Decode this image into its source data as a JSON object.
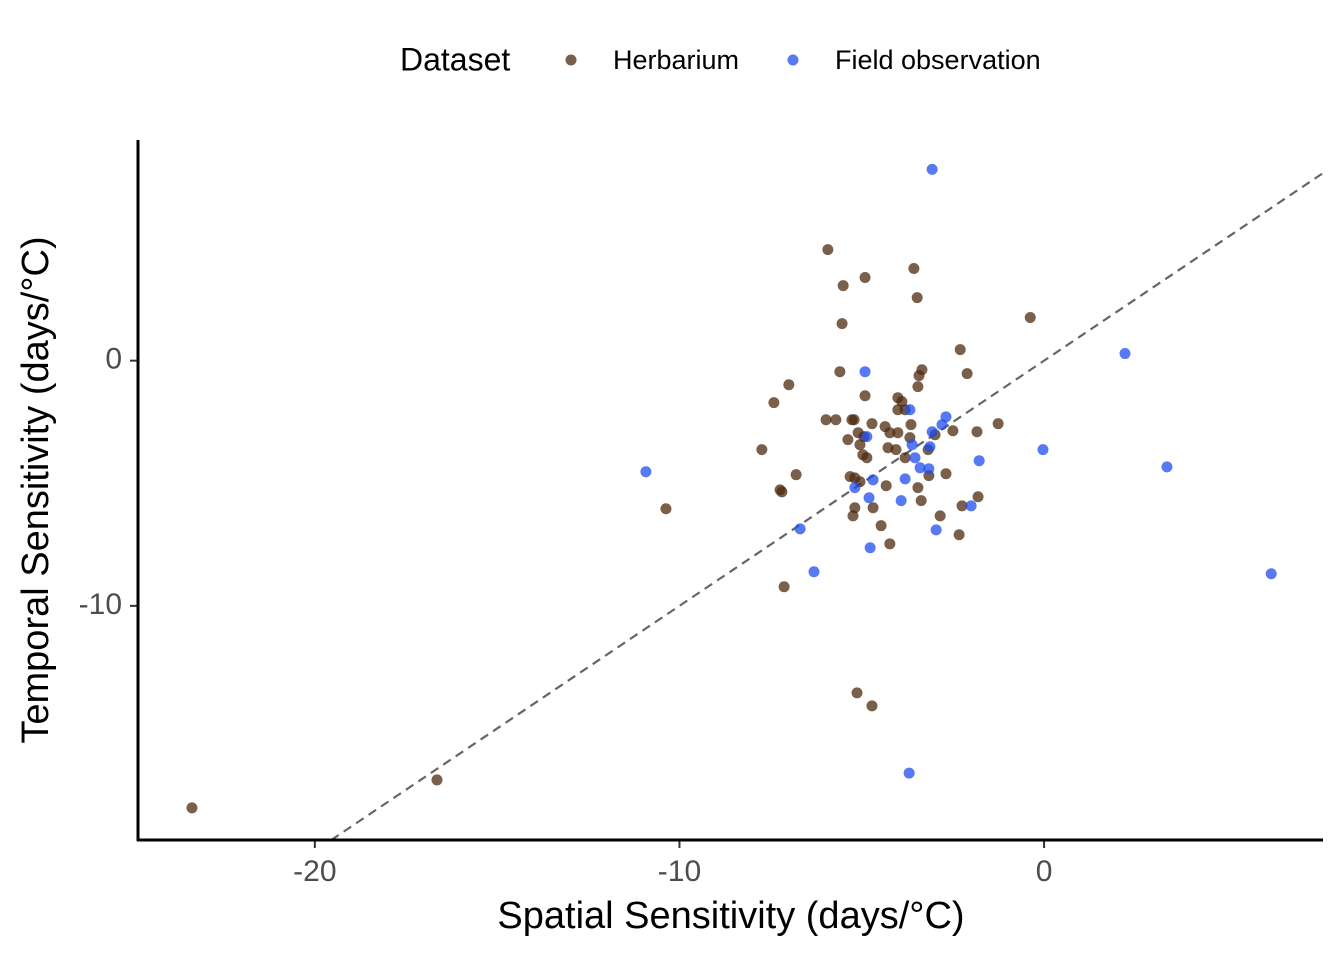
{
  "chart_data": {
    "type": "scatter",
    "x_label": "Spatial Sensitivity (days/°C)",
    "y_label": "Temporal Sensitivity (days/°C)",
    "legend_title": "Dataset",
    "legend_position": "top",
    "identity_line": true,
    "xlim": [
      -24.85,
      7.65
    ],
    "xticks": [
      -20,
      -10,
      0
    ],
    "ylim": [
      -19.55,
      9.0
    ],
    "yticks": [
      -10,
      0
    ],
    "series": [
      {
        "name": "Herbarium",
        "color": "#4e2a0e",
        "x": [
          -23.37,
          -16.65,
          -10.37,
          -7.74,
          -7.41,
          -7.0,
          -7.24,
          -7.19,
          -6.8,
          -7.13,
          -5.93,
          -4.91,
          -5.51,
          -5.54,
          -5.6,
          -3.57,
          -3.48,
          -0.38,
          -2.3,
          -3.35,
          -3.43,
          -3.46,
          -2.11,
          -4.91,
          -5.98,
          -5.71,
          -5.27,
          -5.21,
          -4.01,
          -3.9,
          -3.81,
          -4.01,
          -4.72,
          -4.36,
          -4.23,
          -3.65,
          -4.01,
          -5.1,
          -4.94,
          -5.38,
          -5.05,
          -3.68,
          -2.99,
          -2.5,
          -1.84,
          -1.26,
          -4.28,
          -4.06,
          -4.97,
          -4.86,
          -3.18,
          -3.81,
          -5.32,
          -5.19,
          -5.05,
          -4.33,
          -3.16,
          -2.69,
          -3.46,
          -3.37,
          -1.81,
          -2.25,
          -5.19,
          -4.69,
          -5.24,
          -2.85,
          -4.47,
          -2.33,
          -4.23,
          -5.13,
          -4.72
        ],
        "values": [
          -18.24,
          -17.1,
          -6.04,
          -3.63,
          -1.71,
          -0.98,
          -5.27,
          -5.35,
          -4.65,
          -9.22,
          4.53,
          3.39,
          3.06,
          1.51,
          -0.45,
          3.76,
          2.57,
          1.76,
          0.45,
          -0.37,
          -0.61,
          -1.06,
          -0.53,
          -1.43,
          -2.41,
          -2.41,
          -2.41,
          -2.41,
          -1.51,
          -1.67,
          -2.0,
          -2.0,
          -2.57,
          -2.69,
          -2.94,
          -2.61,
          -2.94,
          -2.94,
          -3.1,
          -3.22,
          -3.43,
          -3.14,
          -3.02,
          -2.86,
          -2.9,
          -2.57,
          -3.55,
          -3.63,
          -3.84,
          -3.96,
          -3.63,
          -3.96,
          -4.73,
          -4.78,
          -4.94,
          -5.1,
          -4.69,
          -4.61,
          -5.18,
          -5.71,
          -5.55,
          -5.92,
          -6.0,
          -6.0,
          -6.33,
          -6.33,
          -6.73,
          -7.1,
          -7.47,
          -13.55,
          -14.08
        ]
      },
      {
        "name": "Field observation",
        "color": "#1f4cf0",
        "x": [
          -3.07,
          2.22,
          -4.91,
          -3.68,
          -2.69,
          -2.8,
          -3.07,
          -4.86,
          -3.62,
          -3.13,
          -0.03,
          -3.54,
          -1.78,
          -3.4,
          -3.16,
          3.37,
          -10.92,
          -4.69,
          -3.81,
          -5.19,
          -4.8,
          -3.92,
          -2.0,
          -2.96,
          -6.69,
          -4.77,
          -6.31,
          6.23,
          -3.7
        ],
        "values": [
          7.8,
          0.29,
          -0.45,
          -2.0,
          -2.29,
          -2.61,
          -2.9,
          -3.1,
          -3.43,
          -3.51,
          -3.63,
          -3.96,
          -4.08,
          -4.37,
          -4.41,
          -4.33,
          -4.53,
          -4.86,
          -4.82,
          -5.18,
          -5.59,
          -5.71,
          -5.92,
          -6.9,
          -6.86,
          -7.63,
          -8.61,
          -8.69,
          -16.82
        ]
      }
    ]
  }
}
